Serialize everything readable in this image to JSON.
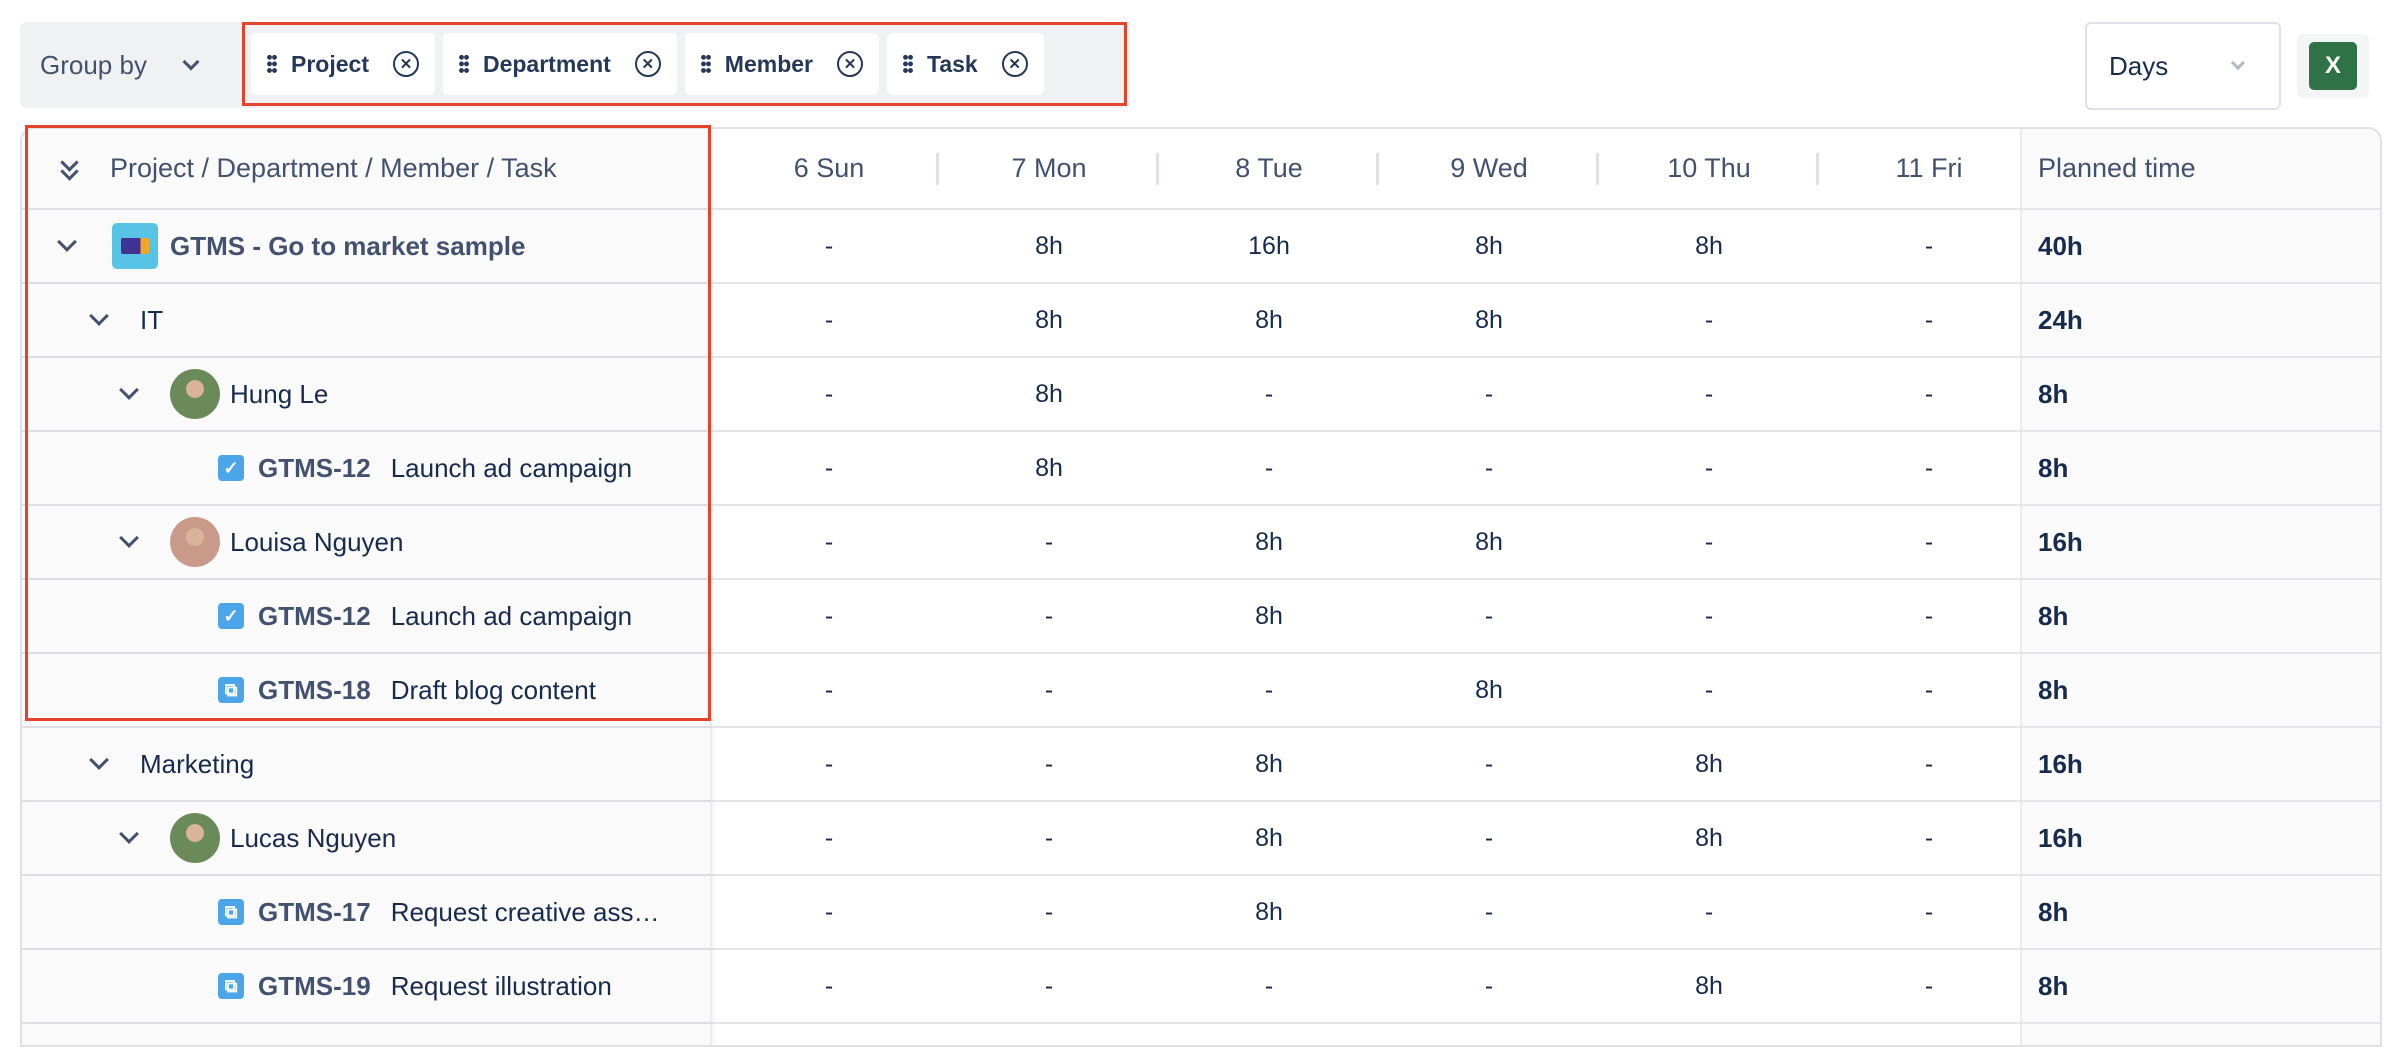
{
  "toolbar": {
    "group_by_label": "Group by",
    "chips": [
      "Project",
      "Department",
      "Member",
      "Task"
    ],
    "view_select": "Days",
    "export_icon": "excel-icon",
    "export_label": "X"
  },
  "table": {
    "header": {
      "tree": "Project / Department / Member / Task",
      "days": [
        "6 Sun",
        "7 Mon",
        "8 Tue",
        "9 Wed",
        "10 Thu",
        "11 Fri"
      ],
      "planned": "Planned time"
    },
    "rows": [
      {
        "type": "project",
        "label": "GTMS - Go to market sample",
        "values": [
          "-",
          "8h",
          "16h",
          "8h",
          "8h",
          "-"
        ],
        "planned": "40h"
      },
      {
        "type": "department",
        "label": "IT",
        "values": [
          "-",
          "8h",
          "8h",
          "8h",
          "-",
          "-"
        ],
        "planned": "24h"
      },
      {
        "type": "member",
        "label": "Hung Le",
        "values": [
          "-",
          "8h",
          "-",
          "-",
          "-",
          "-"
        ],
        "planned": "8h"
      },
      {
        "type": "task",
        "icon": "task-check-icon",
        "key": "GTMS-12",
        "label": "Launch ad campaign",
        "values": [
          "-",
          "8h",
          "-",
          "-",
          "-",
          "-"
        ],
        "planned": "8h"
      },
      {
        "type": "member",
        "label": "Louisa Nguyen",
        "values": [
          "-",
          "-",
          "8h",
          "8h",
          "-",
          "-"
        ],
        "planned": "16h"
      },
      {
        "type": "task",
        "icon": "task-check-icon",
        "key": "GTMS-12",
        "label": "Launch ad campaign",
        "values": [
          "-",
          "-",
          "8h",
          "-",
          "-",
          "-"
        ],
        "planned": "8h"
      },
      {
        "type": "task",
        "icon": "subtask-icon",
        "key": "GTMS-18",
        "label": "Draft blog content",
        "values": [
          "-",
          "-",
          "-",
          "8h",
          "-",
          "-"
        ],
        "planned": "8h"
      },
      {
        "type": "department",
        "label": "Marketing",
        "values": [
          "-",
          "-",
          "8h",
          "-",
          "8h",
          "-"
        ],
        "planned": "16h"
      },
      {
        "type": "member",
        "label": "Lucas Nguyen",
        "values": [
          "-",
          "-",
          "8h",
          "-",
          "8h",
          "-"
        ],
        "planned": "16h"
      },
      {
        "type": "task",
        "icon": "subtask-icon",
        "key": "GTMS-17",
        "label": "Request creative ass…",
        "values": [
          "-",
          "-",
          "8h",
          "-",
          "-",
          "-"
        ],
        "planned": "8h"
      },
      {
        "type": "task",
        "icon": "subtask-icon",
        "key": "GTMS-19",
        "label": "Request illustration",
        "values": [
          "-",
          "-",
          "-",
          "-",
          "8h",
          "-"
        ],
        "planned": "8h"
      }
    ]
  },
  "colors": {
    "highlight": "#e5442c",
    "project_icon": "#57c4e5",
    "task_icon": "#4ba5e8",
    "excel": "#2e7245"
  }
}
